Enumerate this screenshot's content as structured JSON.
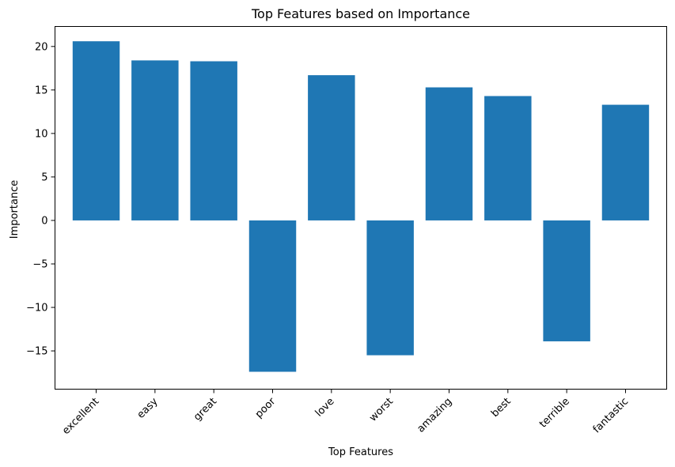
{
  "chart_data": {
    "type": "bar",
    "title": "Top Features based on Importance",
    "xlabel": "Top Features",
    "ylabel": "Importance",
    "categories": [
      "excellent",
      "easy",
      "great",
      "poor",
      "love",
      "worst",
      "amazing",
      "best",
      "terrible",
      "fantastic"
    ],
    "values": [
      20.6,
      18.4,
      18.3,
      -17.4,
      16.7,
      -15.5,
      15.3,
      14.3,
      -13.9,
      13.3
    ],
    "ylim": [
      -19.4,
      22.3
    ],
    "yticks": [
      -15,
      -10,
      -5,
      0,
      5,
      10,
      15,
      20
    ],
    "ytick_labels": [
      "−15",
      "−10",
      "−5",
      "0",
      "5",
      "10",
      "15",
      "20"
    ],
    "grid": false,
    "legend": "none",
    "bar_color": "#1f77b4"
  }
}
